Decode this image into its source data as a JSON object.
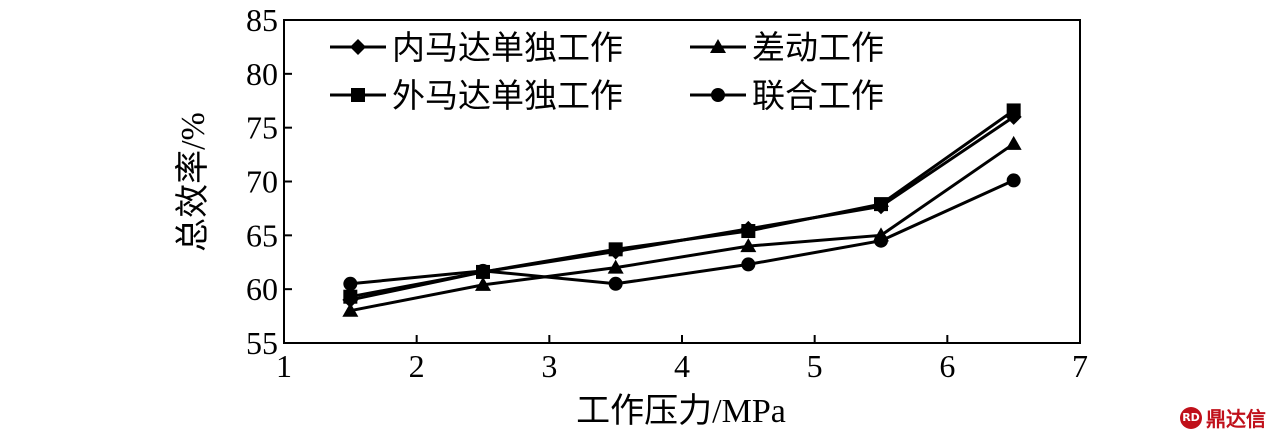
{
  "chart_data": {
    "type": "line",
    "xlabel": "工作压力/MPa",
    "ylabel": "总效率/%",
    "xlim": [
      1,
      7
    ],
    "ylim": [
      55,
      85
    ],
    "xticks": [
      "1",
      "2",
      "3",
      "4",
      "5",
      "6",
      "7"
    ],
    "yticks": [
      "55",
      "60",
      "65",
      "70",
      "75",
      "80",
      "85"
    ],
    "legend": "top-left",
    "grid": false,
    "x": [
      1.5,
      2.5,
      3.5,
      4.5,
      5.5,
      6.5
    ],
    "series": [
      {
        "name": "内马达单独工作",
        "marker": "diamond",
        "values": [
          59.0,
          61.6,
          63.5,
          65.6,
          67.7,
          76.0
        ]
      },
      {
        "name": "差动工作",
        "marker": "triangle",
        "values": [
          58.0,
          60.4,
          62.0,
          64.0,
          65.0,
          73.5
        ]
      },
      {
        "name": "外马达单独工作",
        "marker": "square",
        "values": [
          59.3,
          61.6,
          63.7,
          65.4,
          67.9,
          76.6
        ]
      },
      {
        "name": "联合工作",
        "marker": "circle",
        "values": [
          60.5,
          61.7,
          60.5,
          62.3,
          64.5,
          70.1
        ]
      }
    ]
  },
  "watermark": {
    "text": "鼎达信",
    "icon": "logo-icon"
  }
}
